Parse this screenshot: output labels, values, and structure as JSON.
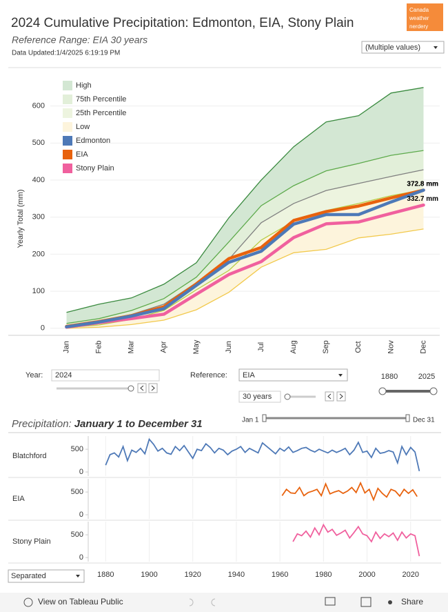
{
  "header": {
    "title": "2024 Cumulative Precipitation: Edmonton, EIA, Stony Plain",
    "subtitle": "Reference Range: EIA 30 years",
    "updated": "Data Updated:1/4/2025 6:19:19 PM",
    "logo": [
      "Canada",
      "weather",
      "nerdery"
    ],
    "filter": "(Multiple values)"
  },
  "controls": {
    "year_label": "Year:",
    "year": "2024",
    "reference_label": "Reference:",
    "reference": "EIA",
    "period": "30 years",
    "range_start": 1880,
    "range_end": 2025,
    "day_start": "Jan 1",
    "day_end": "Dec 31",
    "layout": "Separated"
  },
  "section": {
    "title": "Precipitation:",
    "range": "January 1 to December 31"
  },
  "footer": {
    "link": "View on Tableau Public",
    "share": "Share"
  },
  "chart_data": [
    {
      "type": "band_line",
      "y_label": "Yearly Total (mm)",
      "categories": [
        "Jan",
        "Feb",
        "Mar",
        "Apr",
        "May",
        "Jun",
        "Jul",
        "Aug",
        "Sep",
        "Oct",
        "Nov",
        "Dec"
      ],
      "ylim": [
        -19,
        685
      ],
      "yticks": [
        0,
        100,
        200,
        300,
        400,
        500,
        600
      ],
      "grid": true,
      "legend": "top-left",
      "series": [
        {
          "name": "High",
          "color": "#d3e7d3",
          "line_color": "#3a8a3f",
          "values": [
            43,
            65,
            82,
            119,
            177,
            298,
            400,
            490,
            557,
            574,
            635,
            650
          ]
        },
        {
          "name": "75th Percentile",
          "color": "#e2efd9",
          "line_color": "#5daa4b",
          "values": [
            13,
            26,
            48,
            80,
            138,
            233,
            331,
            385,
            425,
            445,
            467,
            480
          ]
        },
        {
          "name": "25th Percentile",
          "color": "#edf4df",
          "line_color": "#b7cc45",
          "values": [
            2,
            9,
            24,
            48,
            104,
            156,
            238,
            289,
            318,
            337,
            358,
            374
          ]
        },
        {
          "name": "Low",
          "color": "#fdf4dc",
          "line_color": "#f2c94c",
          "values": [
            0,
            3,
            10,
            22,
            50,
            97,
            165,
            204,
            213,
            244,
            254,
            268
          ]
        },
        {
          "name": "Edmonton",
          "color": "#4e79b7",
          "values": [
            4,
            17,
            33,
            53,
            116,
            178,
            208,
            281,
            307,
            307,
            341,
            372.8
          ],
          "value_labels": [
            null,
            null,
            null,
            null,
            null,
            null,
            null,
            null,
            null,
            null,
            null,
            "372.8 mm"
          ]
        },
        {
          "name": "EIA",
          "color": "#e8620d",
          "values": [
            5,
            18,
            34,
            58,
            120,
            188,
            218,
            291,
            315,
            330,
            352,
            372.8
          ],
          "value_labels": [
            null,
            null,
            null,
            null,
            null,
            null,
            null,
            null,
            null,
            null,
            null,
            "372.8 mm"
          ]
        },
        {
          "name": "Stony Plain",
          "color": "#f0609e",
          "values": [
            3,
            15,
            26,
            38,
            92,
            145,
            180,
            245,
            282,
            287,
            310,
            332.7
          ],
          "value_labels": [
            null,
            null,
            null,
            null,
            null,
            null,
            null,
            null,
            null,
            null,
            null,
            "332.7 mm"
          ]
        }
      ],
      "reference_line": {
        "color": "#808080",
        "values": [
          5,
          20,
          37,
          65,
          123,
          186,
          285,
          337,
          372,
          391,
          410,
          428
        ]
      }
    },
    {
      "type": "line",
      "label": "Blatchford",
      "color": "#4e79b7",
      "xlim": [
        1872,
        2034
      ],
      "ylim": [
        -90,
        790
      ],
      "yticks": [
        0,
        500
      ],
      "x": [
        1880,
        1882,
        1884,
        1886,
        1888,
        1890,
        1892,
        1894,
        1896,
        1898,
        1900,
        1902,
        1904,
        1906,
        1908,
        1910,
        1912,
        1914,
        1916,
        1918,
        1920,
        1922,
        1924,
        1926,
        1928,
        1930,
        1932,
        1934,
        1936,
        1938,
        1940,
        1942,
        1944,
        1946,
        1948,
        1950,
        1952,
        1954,
        1956,
        1958,
        1960,
        1962,
        1964,
        1966,
        1968,
        1970,
        1972,
        1974,
        1976,
        1978,
        1980,
        1982,
        1984,
        1986,
        1988,
        1990,
        1992,
        1994,
        1996,
        1998,
        2000,
        2002,
        2004,
        2006,
        2008,
        2010,
        2012,
        2014,
        2016,
        2018,
        2020,
        2022,
        2024
      ],
      "values": [
        150,
        380,
        420,
        330,
        560,
        250,
        480,
        430,
        520,
        400,
        720,
        610,
        460,
        520,
        420,
        390,
        560,
        470,
        580,
        440,
        300,
        500,
        470,
        620,
        540,
        420,
        520,
        480,
        380,
        460,
        500,
        560,
        430,
        520,
        470,
        420,
        640,
        560,
        480,
        400,
        520,
        460,
        550,
        430,
        470,
        520,
        540,
        480,
        440,
        500,
        460,
        420,
        480,
        430,
        470,
        520,
        380,
        480,
        650,
        430,
        460,
        320,
        520,
        410,
        430,
        470,
        440,
        200,
        560,
        380,
        540,
        440,
        20
      ]
    },
    {
      "type": "line",
      "label": "EIA",
      "color": "#e8620d",
      "xlim": [
        1872,
        2034
      ],
      "ylim": [
        -90,
        790
      ],
      "yticks": [
        0,
        500
      ],
      "x": [
        1961,
        1963,
        1965,
        1967,
        1969,
        1971,
        1973,
        1975,
        1977,
        1979,
        1981,
        1983,
        1985,
        1987,
        1989,
        1991,
        1993,
        1995,
        1997,
        1999,
        2001,
        2003,
        2005,
        2007,
        2009,
        2011,
        2013,
        2015,
        2017,
        2019,
        2021,
        2023
      ],
      "values": [
        420,
        560,
        480,
        470,
        600,
        420,
        490,
        520,
        560,
        420,
        680,
        460,
        500,
        530,
        470,
        520,
        600,
        490,
        700,
        480,
        560,
        330,
        580,
        470,
        390,
        560,
        520,
        410,
        560,
        470,
        550,
        400
      ]
    },
    {
      "type": "line",
      "label": "Stony Plain",
      "color": "#f0609e",
      "xlim": [
        1872,
        2034
      ],
      "ylim": [
        -90,
        790
      ],
      "yticks": [
        0,
        500
      ],
      "xticks": [
        1880,
        1900,
        1920,
        1940,
        1960,
        1980,
        2000,
        2020
      ],
      "x": [
        1966,
        1968,
        1970,
        1972,
        1974,
        1976,
        1978,
        1980,
        1982,
        1984,
        1986,
        1988,
        1990,
        1992,
        1994,
        1996,
        1998,
        2000,
        2002,
        2004,
        2006,
        2008,
        2010,
        2012,
        2014,
        2016,
        2018,
        2020,
        2022,
        2024
      ],
      "values": [
        350,
        520,
        480,
        580,
        450,
        650,
        500,
        720,
        560,
        620,
        490,
        540,
        600,
        430,
        550,
        680,
        520,
        480,
        350,
        560,
        420,
        520,
        460,
        540,
        380,
        560,
        430,
        520,
        480,
        30
      ]
    }
  ]
}
